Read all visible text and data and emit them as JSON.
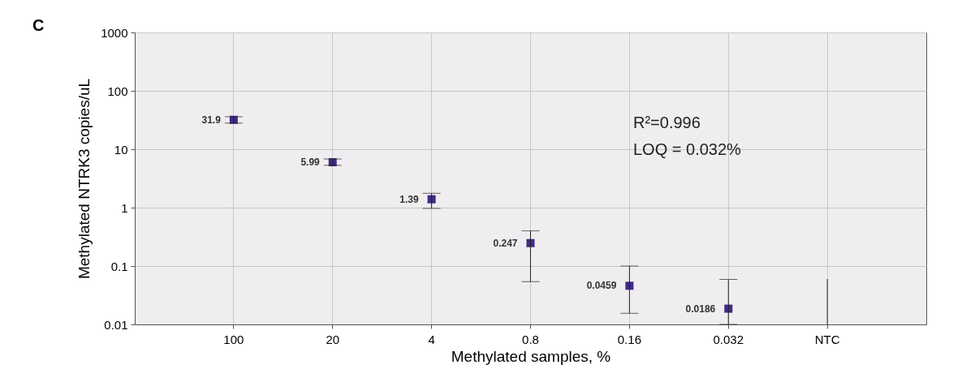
{
  "chart_data": {
    "type": "scatter",
    "xlabel": "Methylated samples, %",
    "ylabel": "Methylated NTRK3 copies/uL",
    "categories": [
      "100",
      "20",
      "4",
      "0.8",
      "0.16",
      "0.032",
      "NTC"
    ],
    "series": [
      {
        "color": "#3f2a87",
        "marker": "square",
        "values": [
          31.9,
          5.99,
          1.39,
          0.247,
          0.0459,
          0.0186,
          null
        ],
        "value_labels": [
          "31.9",
          "5.99",
          "1.39",
          "0.247",
          "0.0459",
          "0.0186",
          null
        ],
        "errors": [
          [
            28,
            36
          ],
          [
            5.3,
            6.8
          ],
          [
            0.97,
            1.76
          ],
          [
            0.054,
            0.4
          ],
          [
            0.0155,
            0.1
          ],
          [
            0.01,
            0.059
          ],
          null
        ]
      },
      {
        "type": "line",
        "color": "#222222",
        "x": [
          "NTC",
          "NTC"
        ],
        "values": [
          0.01,
          0.06
        ]
      }
    ],
    "log": "y",
    "ylim": [
      0.01,
      1000
    ],
    "yticks": [
      0.01,
      0.1,
      1,
      10,
      100,
      1000
    ],
    "grid": true,
    "annotations": [
      "C",
      {
        "text": "R²=0.996"
      },
      {
        "text": "LOQ = 0.032%"
      }
    ]
  }
}
